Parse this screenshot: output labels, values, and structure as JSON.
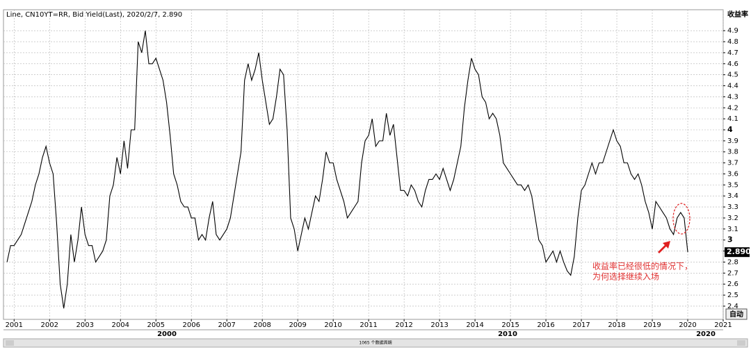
{
  "chart_data": {
    "type": "line",
    "title": "Line, CN10YT=RR, Bid Yield(Last), 2020/2/7, 2.890",
    "y_axis_label": "收益率",
    "last_value_label": "2.890",
    "auto_button": "自动",
    "scroll_label": "1065 个数据周期",
    "period_labels": [
      "2000",
      "2010",
      "2020"
    ],
    "annotation": [
      "收益率已经很低的情况下，",
      "为何选择继续入场"
    ],
    "color": "#000000",
    "grid": true,
    "xlim": [
      2000.7,
      2021
    ],
    "ylim": [
      2.28,
      5.09
    ],
    "xticks": [
      2001,
      2002,
      2003,
      2004,
      2005,
      2006,
      2007,
      2008,
      2009,
      2010,
      2011,
      2012,
      2013,
      2014,
      2015,
      2016,
      2017,
      2018,
      2019,
      2020,
      2021
    ],
    "yticks": [
      2.4,
      2.5,
      2.6,
      2.7,
      2.8,
      2.9,
      3,
      3.1,
      3.2,
      3.3,
      3.4,
      3.5,
      3.6,
      3.7,
      3.8,
      3.9,
      4,
      4.1,
      4.2,
      4.3,
      4.4,
      4.5,
      4.6,
      4.7,
      4.8,
      4.9
    ],
    "x": [
      2000.8,
      2000.9,
      2001,
      2001.1,
      2001.2,
      2001.3,
      2001.4,
      2001.5,
      2001.6,
      2001.7,
      2001.8,
      2001.9,
      2002,
      2002.1,
      2002.2,
      2002.3,
      2002.4,
      2002.5,
      2002.6,
      2002.7,
      2002.8,
      2002.9,
      2003,
      2003.1,
      2003.2,
      2003.3,
      2003.4,
      2003.5,
      2003.6,
      2003.7,
      2003.8,
      2003.9,
      2004,
      2004.1,
      2004.2,
      2004.3,
      2004.4,
      2004.5,
      2004.6,
      2004.7,
      2004.8,
      2004.9,
      2005,
      2005.1,
      2005.2,
      2005.3,
      2005.4,
      2005.5,
      2005.6,
      2005.7,
      2005.8,
      2005.9,
      2006,
      2006.1,
      2006.2,
      2006.3,
      2006.4,
      2006.5,
      2006.6,
      2006.7,
      2006.8,
      2006.9,
      2007,
      2007.1,
      2007.2,
      2007.3,
      2007.4,
      2007.5,
      2007.6,
      2007.7,
      2007.8,
      2007.9,
      2008,
      2008.1,
      2008.2,
      2008.3,
      2008.4,
      2008.5,
      2008.6,
      2008.7,
      2008.8,
      2008.9,
      2009,
      2009.1,
      2009.2,
      2009.3,
      2009.4,
      2009.5,
      2009.6,
      2009.7,
      2009.8,
      2009.9,
      2010,
      2010.1,
      2010.2,
      2010.3,
      2010.4,
      2010.5,
      2010.6,
      2010.7,
      2010.8,
      2010.9,
      2011,
      2011.1,
      2011.2,
      2011.3,
      2011.4,
      2011.5,
      2011.6,
      2011.7,
      2011.8,
      2011.9,
      2012,
      2012.1,
      2012.2,
      2012.3,
      2012.4,
      2012.5,
      2012.6,
      2012.7,
      2012.8,
      2012.9,
      2013,
      2013.1,
      2013.2,
      2013.3,
      2013.4,
      2013.5,
      2013.6,
      2013.7,
      2013.8,
      2013.9,
      2014,
      2014.1,
      2014.2,
      2014.3,
      2014.4,
      2014.5,
      2014.6,
      2014.7,
      2014.8,
      2014.9,
      2015,
      2015.1,
      2015.2,
      2015.3,
      2015.4,
      2015.5,
      2015.6,
      2015.7,
      2015.8,
      2015.9,
      2016,
      2016.1,
      2016.2,
      2016.3,
      2016.4,
      2016.5,
      2016.6,
      2016.7,
      2016.8,
      2016.9,
      2017,
      2017.1,
      2017.2,
      2017.3,
      2017.4,
      2017.5,
      2017.6,
      2017.7,
      2017.8,
      2017.9,
      2018,
      2018.1,
      2018.2,
      2018.3,
      2018.4,
      2018.5,
      2018.6,
      2018.7,
      2018.8,
      2018.9,
      2019,
      2019.1,
      2019.2,
      2019.3,
      2019.4,
      2019.5,
      2019.6,
      2019.7,
      2019.8,
      2019.9,
      2020
    ],
    "values": [
      2.8,
      2.95,
      2.95,
      3.0,
      3.05,
      3.15,
      3.25,
      3.35,
      3.5,
      3.6,
      3.75,
      3.85,
      3.7,
      3.6,
      3.15,
      2.6,
      2.38,
      2.6,
      3.05,
      2.8,
      3.0,
      3.3,
      3.05,
      2.95,
      2.95,
      2.8,
      2.85,
      2.9,
      3.0,
      3.4,
      3.5,
      3.75,
      3.6,
      3.9,
      3.65,
      4.0,
      4.0,
      4.8,
      4.7,
      4.9,
      4.6,
      4.6,
      4.65,
      4.55,
      4.45,
      4.25,
      3.95,
      3.6,
      3.5,
      3.35,
      3.3,
      3.3,
      3.2,
      3.2,
      3.0,
      3.05,
      3.0,
      3.2,
      3.35,
      3.05,
      3.0,
      3.05,
      3.1,
      3.2,
      3.4,
      3.6,
      3.8,
      4.45,
      4.6,
      4.45,
      4.55,
      4.7,
      4.45,
      4.25,
      4.05,
      4.1,
      4.3,
      4.55,
      4.5,
      4.0,
      3.2,
      3.1,
      2.9,
      3.05,
      3.2,
      3.1,
      3.25,
      3.4,
      3.35,
      3.55,
      3.8,
      3.7,
      3.7,
      3.55,
      3.45,
      3.35,
      3.2,
      3.25,
      3.3,
      3.35,
      3.7,
      3.9,
      3.95,
      4.1,
      3.85,
      3.9,
      3.9,
      4.15,
      3.95,
      4.05,
      3.75,
      3.45,
      3.45,
      3.4,
      3.5,
      3.45,
      3.35,
      3.3,
      3.45,
      3.55,
      3.55,
      3.6,
      3.55,
      3.65,
      3.55,
      3.45,
      3.55,
      3.7,
      3.85,
      4.2,
      4.45,
      4.65,
      4.55,
      4.5,
      4.3,
      4.25,
      4.1,
      4.15,
      4.1,
      3.95,
      3.7,
      3.65,
      3.6,
      3.55,
      3.5,
      3.5,
      3.45,
      3.5,
      3.4,
      3.2,
      3.0,
      2.95,
      2.8,
      2.85,
      2.9,
      2.8,
      2.9,
      2.8,
      2.72,
      2.68,
      2.85,
      3.2,
      3.45,
      3.5,
      3.6,
      3.7,
      3.6,
      3.7,
      3.7,
      3.8,
      3.9,
      4.0,
      3.9,
      3.85,
      3.7,
      3.7,
      3.6,
      3.55,
      3.6,
      3.5,
      3.35,
      3.25,
      3.1,
      3.35,
      3.3,
      3.25,
      3.2,
      3.1,
      3.05,
      3.2,
      3.25,
      3.2,
      2.89
    ]
  }
}
